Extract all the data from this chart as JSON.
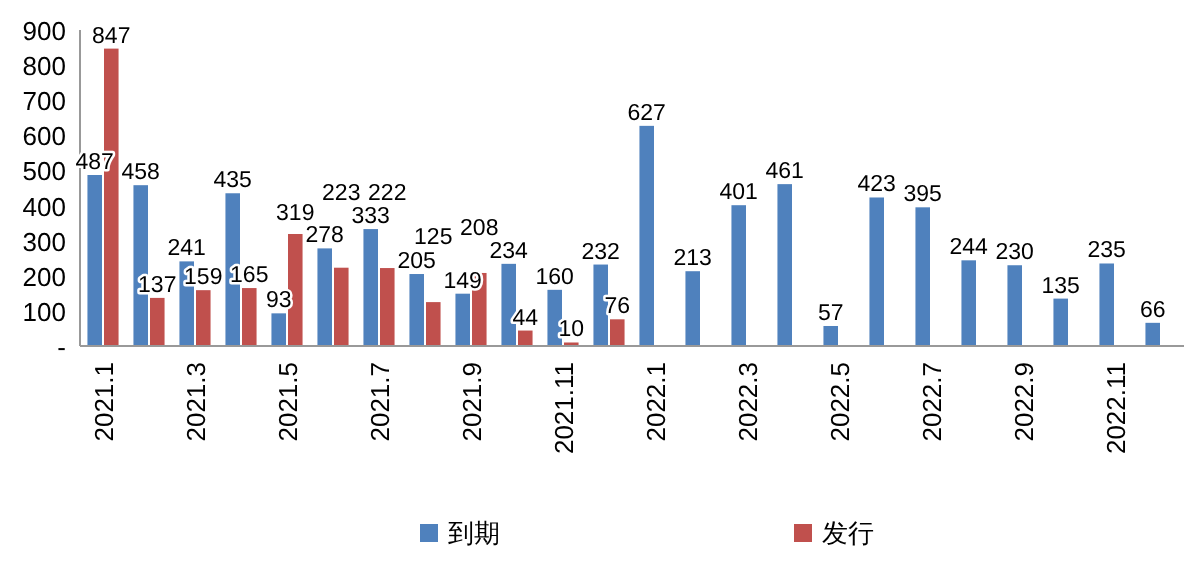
{
  "chart_data": {
    "type": "bar",
    "categories": [
      "2021.1",
      null,
      "2021.3",
      null,
      "2021.5",
      null,
      "2021.7",
      null,
      "2021.9",
      null,
      "2021.11",
      null,
      "2022.1",
      null,
      "2022.3",
      null,
      "2022.5",
      null,
      "2022.7",
      null,
      "2022.9",
      null,
      "2022.11",
      null
    ],
    "series": [
      {
        "name": "到期",
        "color": "#4f81bd",
        "values": [
          487,
          458,
          241,
          435,
          93,
          278,
          333,
          205,
          149,
          234,
          160,
          232,
          627,
          213,
          401,
          461,
          57,
          423,
          395,
          244,
          230,
          135,
          235,
          66
        ]
      },
      {
        "name": "发行",
        "color": "#c0504d",
        "values": [
          847,
          137,
          159,
          165,
          319,
          223,
          222,
          125,
          208,
          44,
          10,
          76,
          null,
          null,
          null,
          null,
          null,
          null,
          null,
          null,
          null,
          null,
          null,
          null
        ]
      }
    ],
    "ylim": [
      0,
      900
    ],
    "yticks": [
      {
        "value": 0,
        "label": "-"
      },
      100,
      200,
      300,
      400,
      500,
      600,
      700,
      800,
      900
    ],
    "data_labels": true,
    "legend": "bottom"
  }
}
